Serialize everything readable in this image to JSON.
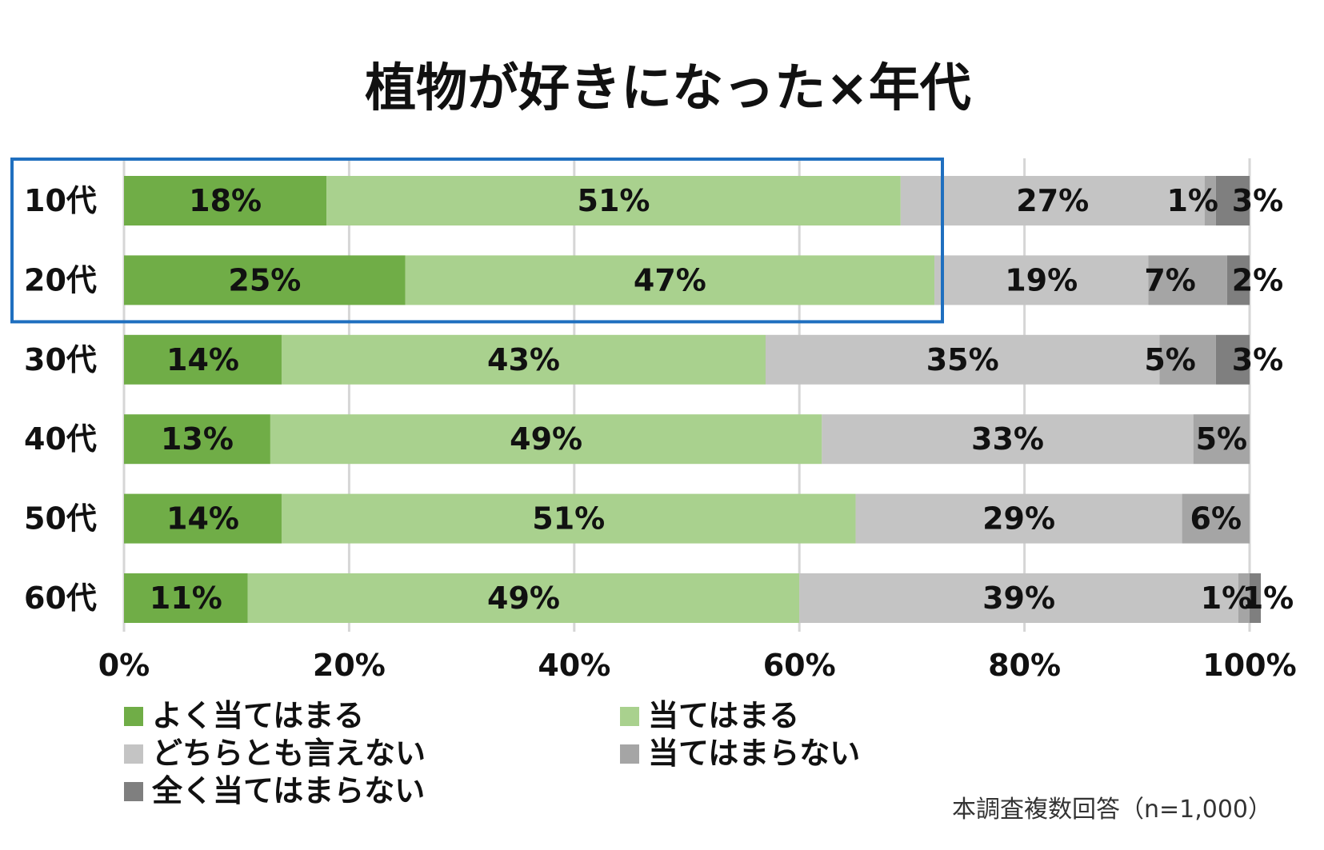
{
  "chart_data": {
    "type": "bar",
    "orientation": "horizontal",
    "stacked": true,
    "percent": true,
    "title": "植物が好きになった×年代",
    "categories": [
      "10代",
      "20代",
      "30代",
      "40代",
      "50代",
      "60代"
    ],
    "series": [
      {
        "name": "よく当てはまる",
        "color": "#70ad47",
        "values": [
          18,
          25,
          14,
          13,
          14,
          11
        ],
        "labels": [
          "18%",
          "25%",
          "14%",
          "13%",
          "14%",
          "11%"
        ]
      },
      {
        "name": "当てはまる",
        "color": "#a9d18e",
        "values": [
          51,
          47,
          43,
          49,
          51,
          49
        ],
        "labels": [
          "51%",
          "47%",
          "43%",
          "49%",
          "51%",
          "49%"
        ]
      },
      {
        "name": "どちらとも言えない",
        "color": "#c4c4c4",
        "values": [
          27,
          19,
          35,
          33,
          29,
          39
        ],
        "labels": [
          "27%",
          "19%",
          "35%",
          "33%",
          "29%",
          "39%"
        ]
      },
      {
        "name": "当てはまらない",
        "color": "#a5a5a5",
        "values": [
          1,
          7,
          5,
          5,
          6,
          1
        ],
        "labels": [
          "1%",
          "7%",
          "5%",
          "5%",
          "6%",
          "1%"
        ]
      },
      {
        "name": "全く当てはまらない",
        "color": "#7f7f7f",
        "values": [
          3,
          2,
          3,
          0,
          0,
          1
        ],
        "labels": [
          "3%",
          "2%",
          "3%",
          "",
          "",
          "1%"
        ]
      }
    ],
    "xlim": [
      0,
      100
    ],
    "xticks": [
      "0%",
      "20%",
      "40%",
      "60%",
      "80%",
      "100%"
    ],
    "grid": true,
    "legend": "bottom",
    "highlight": {
      "categories": [
        "10代",
        "20代"
      ],
      "color": "#1f6fbf"
    },
    "note": "本調査複数回答（n=1,000）"
  }
}
